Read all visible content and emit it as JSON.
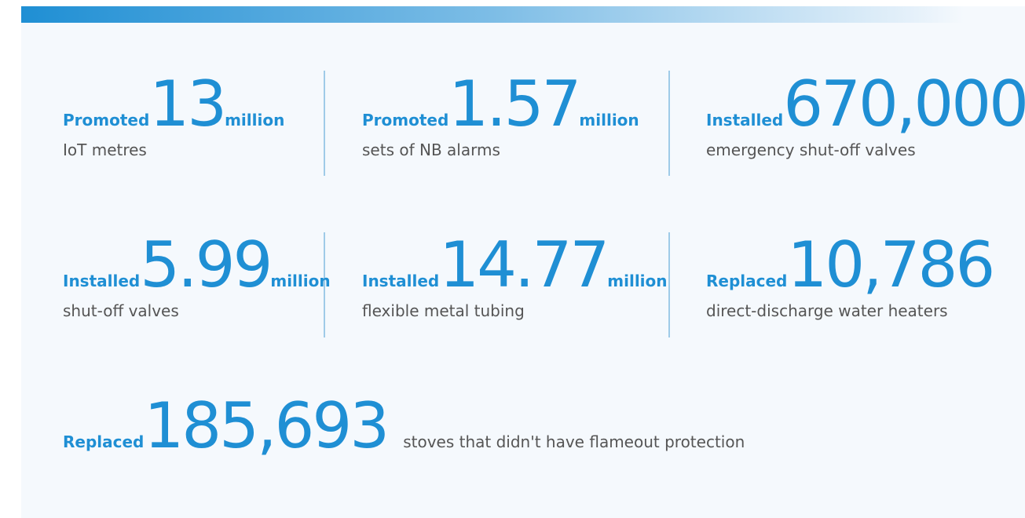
{
  "stats": [
    {
      "verb": "Promoted",
      "number": "13",
      "unit": "million",
      "desc": "IoT metres"
    },
    {
      "verb": "Promoted",
      "number": "1.57",
      "unit": "million",
      "desc": "sets of NB alarms"
    },
    {
      "verb": "Installed",
      "number": "670,000",
      "unit": null,
      "desc": "emergency shut-off valves"
    },
    {
      "verb": "Installed",
      "number": "5.99",
      "unit": "million",
      "desc": "shut-off valves"
    },
    {
      "verb": "Installed",
      "number": "14.77",
      "unit": "million",
      "desc": "flexible metal tubing"
    },
    {
      "verb": "Replaced",
      "number": "10,786",
      "unit": null,
      "desc": "direct-discharge water heaters"
    },
    {
      "verb": "Replaced",
      "number": "185,693",
      "unit": null,
      "desc": "stoves that didn't have flameout protection"
    }
  ]
}
